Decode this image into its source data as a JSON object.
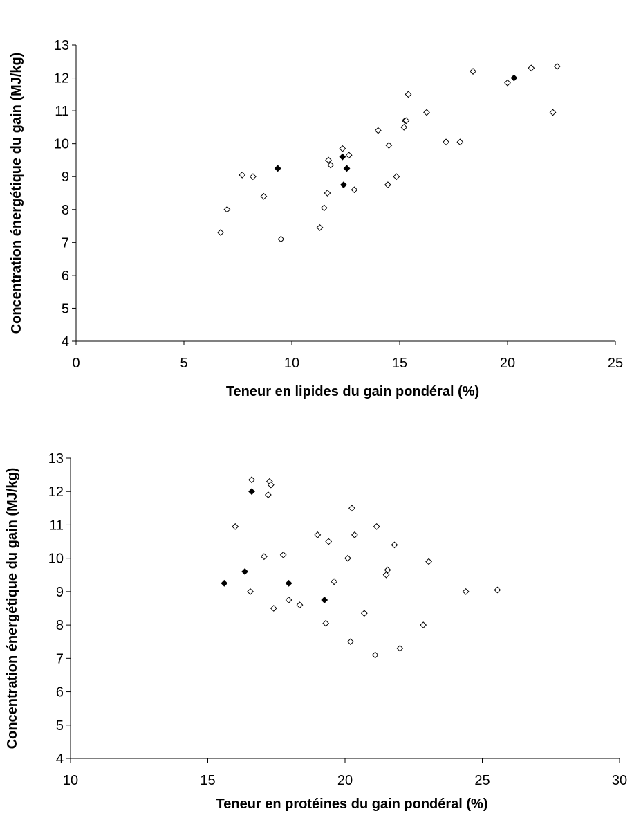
{
  "chart_data": [
    {
      "type": "scatter",
      "xlabel": "Teneur en lipides du gain pondéral (%)",
      "ylabel": "Concentration énergétique du gain (MJ/kg)",
      "xlim": [
        0,
        25
      ],
      "ylim": [
        4,
        13
      ],
      "x_ticks": [
        "0",
        "5",
        "10",
        "15",
        "20",
        "25"
      ],
      "y_ticks": [
        "4",
        "5",
        "6",
        "7",
        "8",
        "9",
        "10",
        "11",
        "12",
        "13"
      ],
      "grid": false,
      "legend": "none",
      "series": [
        {
          "marker": "open-diamond",
          "color": "#000000",
          "points": [
            [
              6.7,
              7.3
            ],
            [
              7.0,
              8.0
            ],
            [
              7.7,
              9.05
            ],
            [
              8.2,
              9.0
            ],
            [
              8.7,
              8.4
            ],
            [
              9.5,
              7.1
            ],
            [
              11.3,
              7.45
            ],
            [
              11.5,
              8.05
            ],
            [
              11.65,
              8.5
            ],
            [
              11.7,
              9.5
            ],
            [
              11.8,
              9.35
            ],
            [
              12.35,
              9.85
            ],
            [
              12.65,
              9.65
            ],
            [
              12.9,
              8.6
            ],
            [
              14.0,
              10.4
            ],
            [
              14.45,
              8.75
            ],
            [
              14.5,
              9.95
            ],
            [
              14.85,
              9.0
            ],
            [
              15.2,
              10.5
            ],
            [
              15.25,
              10.7
            ],
            [
              15.3,
              10.7
            ],
            [
              15.4,
              11.5
            ],
            [
              16.25,
              10.95
            ],
            [
              17.15,
              10.05
            ],
            [
              17.8,
              10.05
            ],
            [
              18.4,
              12.2
            ],
            [
              20.0,
              11.85
            ],
            [
              21.1,
              12.3
            ],
            [
              22.1,
              10.95
            ],
            [
              22.3,
              12.35
            ]
          ]
        },
        {
          "marker": "filled-diamond",
          "color": "#000000",
          "points": [
            [
              9.35,
              9.25
            ],
            [
              12.35,
              9.6
            ],
            [
              12.55,
              9.25
            ],
            [
              12.4,
              8.75
            ],
            [
              20.3,
              12.0
            ]
          ]
        }
      ]
    },
    {
      "type": "scatter",
      "xlabel": "Teneur en protéines du gain pondéral (%)",
      "ylabel": "Concentration énergétique du gain (MJ/kg)",
      "xlim": [
        10,
        30
      ],
      "ylim": [
        4,
        13
      ],
      "x_ticks": [
        "10",
        "15",
        "20",
        "25",
        "30"
      ],
      "y_ticks": [
        "4",
        "5",
        "6",
        "7",
        "8",
        "9",
        "10",
        "11",
        "12",
        "13"
      ],
      "grid": false,
      "legend": "none",
      "series": [
        {
          "marker": "open-diamond",
          "color": "#000000",
          "points": [
            [
              16.0,
              10.95
            ],
            [
              16.6,
              12.35
            ],
            [
              16.55,
              9.0
            ],
            [
              17.05,
              10.05
            ],
            [
              17.2,
              11.9
            ],
            [
              17.25,
              12.3
            ],
            [
              17.3,
              12.2
            ],
            [
              17.4,
              8.5
            ],
            [
              17.75,
              10.1
            ],
            [
              17.95,
              8.75
            ],
            [
              18.35,
              8.6
            ],
            [
              19.0,
              10.7
            ],
            [
              19.3,
              8.05
            ],
            [
              19.4,
              10.5
            ],
            [
              19.6,
              9.3
            ],
            [
              20.1,
              10.0
            ],
            [
              20.2,
              7.5
            ],
            [
              20.25,
              11.5
            ],
            [
              20.35,
              10.7
            ],
            [
              20.7,
              8.35
            ],
            [
              21.1,
              7.1
            ],
            [
              21.15,
              10.95
            ],
            [
              21.5,
              9.5
            ],
            [
              21.55,
              9.65
            ],
            [
              21.8,
              10.4
            ],
            [
              22.0,
              7.3
            ],
            [
              22.85,
              8.0
            ],
            [
              23.05,
              9.9
            ],
            [
              24.4,
              9.0
            ],
            [
              25.55,
              9.05
            ]
          ]
        },
        {
          "marker": "filled-diamond",
          "color": "#000000",
          "points": [
            [
              15.6,
              9.25
            ],
            [
              16.35,
              9.6
            ],
            [
              16.6,
              12.0
            ],
            [
              17.95,
              9.25
            ],
            [
              19.25,
              8.75
            ]
          ]
        }
      ]
    }
  ]
}
